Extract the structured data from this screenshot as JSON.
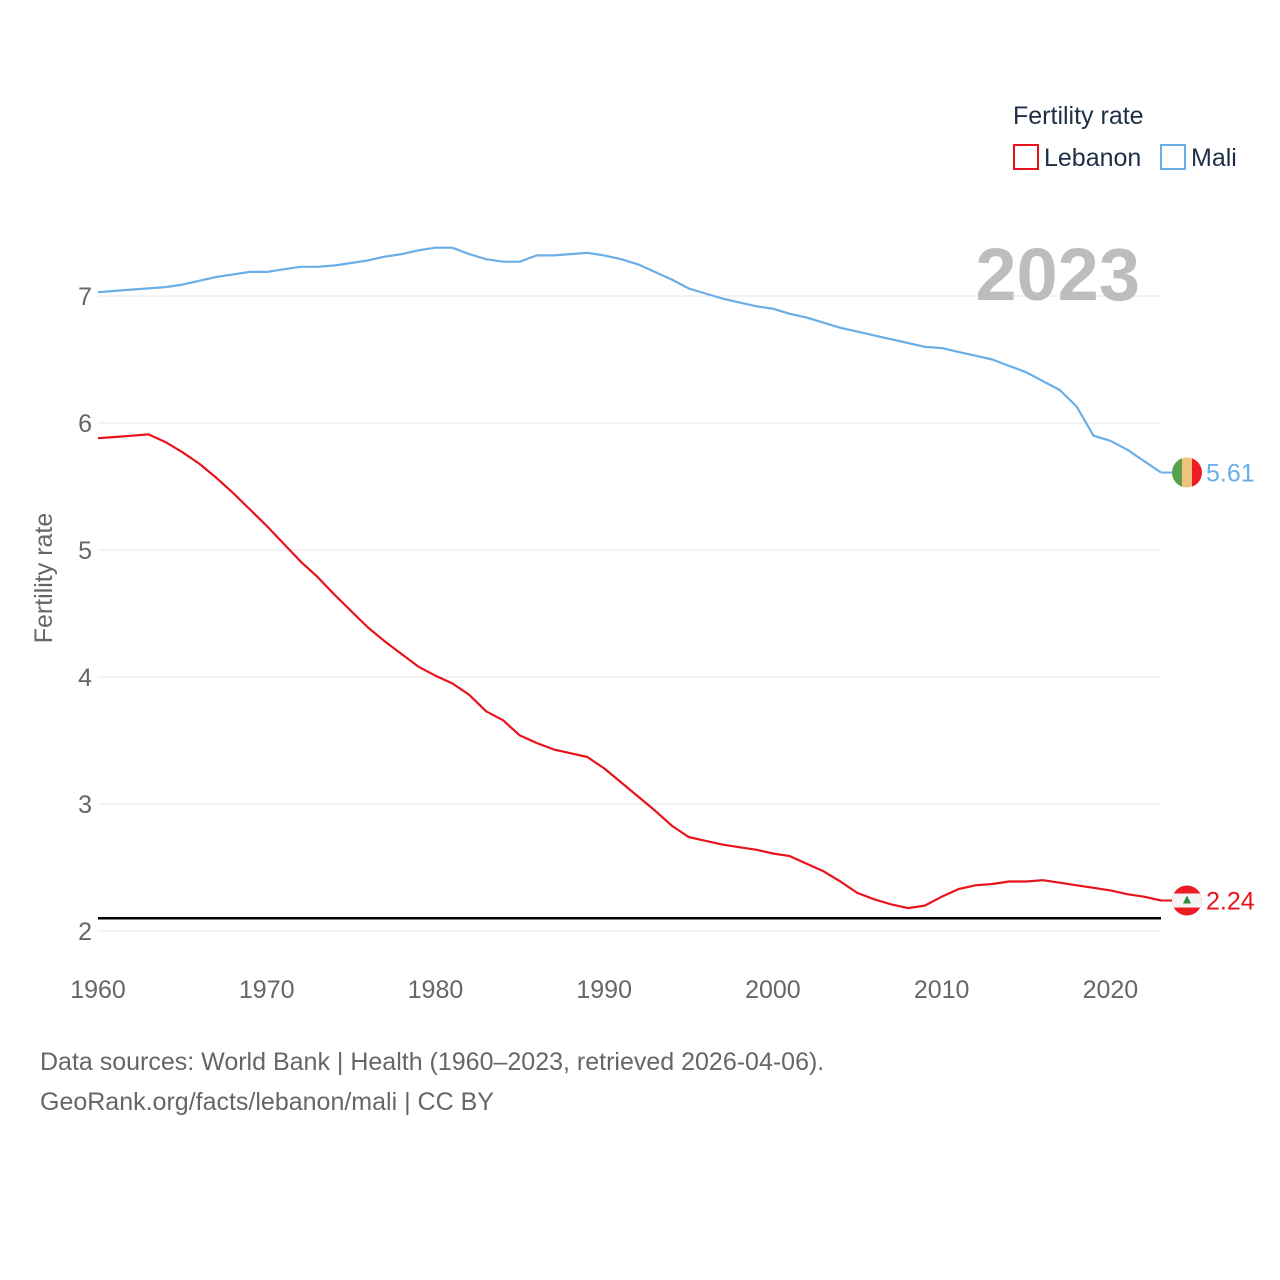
{
  "chart_data": {
    "type": "line",
    "legend_title": "Fertility rate",
    "legend_position": "top-right",
    "year_label": "2023",
    "ylabel": "Fertility rate",
    "xlabel": "",
    "xlim": [
      1960,
      2023
    ],
    "ylim": [
      2,
      7.5
    ],
    "x_ticks": [
      1960,
      1970,
      1980,
      1990,
      2000,
      2010,
      2020
    ],
    "y_ticks": [
      2,
      3,
      4,
      5,
      6,
      7
    ],
    "reference_line": {
      "value": 2.1
    },
    "x": [
      1960,
      1961,
      1962,
      1963,
      1964,
      1965,
      1966,
      1967,
      1968,
      1969,
      1970,
      1971,
      1972,
      1973,
      1974,
      1975,
      1976,
      1977,
      1978,
      1979,
      1980,
      1981,
      1982,
      1983,
      1984,
      1985,
      1986,
      1987,
      1988,
      1989,
      1990,
      1991,
      1992,
      1993,
      1994,
      1995,
      1996,
      1997,
      1998,
      1999,
      2000,
      2001,
      2002,
      2003,
      2004,
      2005,
      2006,
      2007,
      2008,
      2009,
      2010,
      2011,
      2012,
      2013,
      2014,
      2015,
      2016,
      2017,
      2018,
      2019,
      2020,
      2021,
      2022,
      2023
    ],
    "series": [
      {
        "name": "Lebanon",
        "color": "#e8131a",
        "end_label": "2.24",
        "flag": "lebanon-flag-icon",
        "values": [
          5.88,
          5.89,
          5.9,
          5.91,
          5.85,
          5.77,
          5.68,
          5.57,
          5.45,
          5.32,
          5.19,
          5.05,
          4.91,
          4.79,
          4.65,
          4.52,
          4.39,
          4.28,
          4.18,
          4.08,
          4.01,
          3.95,
          3.86,
          3.73,
          3.66,
          3.54,
          3.48,
          3.43,
          3.4,
          3.37,
          3.28,
          3.17,
          3.06,
          2.95,
          2.83,
          2.74,
          2.71,
          2.68,
          2.66,
          2.64,
          2.61,
          2.59,
          2.53,
          2.47,
          2.39,
          2.3,
          2.25,
          2.21,
          2.18,
          2.2,
          2.27,
          2.33,
          2.36,
          2.37,
          2.39,
          2.39,
          2.4,
          2.38,
          2.36,
          2.34,
          2.32,
          2.29,
          2.27,
          2.24
        ]
      },
      {
        "name": "Mali",
        "color": "#6aaee8",
        "end_label": "5.61",
        "flag": "mali-flag-icon",
        "values": [
          7.03,
          7.04,
          7.05,
          7.06,
          7.07,
          7.09,
          7.12,
          7.15,
          7.17,
          7.19,
          7.19,
          7.21,
          7.23,
          7.23,
          7.24,
          7.26,
          7.28,
          7.31,
          7.33,
          7.36,
          7.38,
          7.38,
          7.33,
          7.29,
          7.27,
          7.27,
          7.32,
          7.32,
          7.33,
          7.34,
          7.32,
          7.29,
          7.25,
          7.19,
          7.13,
          7.06,
          7.02,
          6.98,
          6.95,
          6.92,
          6.9,
          6.86,
          6.83,
          6.79,
          6.75,
          6.72,
          6.69,
          6.66,
          6.63,
          6.6,
          6.59,
          6.56,
          6.53,
          6.5,
          6.45,
          6.4,
          6.33,
          6.26,
          6.13,
          5.9,
          5.86,
          5.79,
          5.7,
          5.61
        ]
      }
    ]
  },
  "footer": {
    "sources": "Data sources: World Bank | Health (1960–2023, retrieved 2026-04-06).",
    "credit": "GeoRank.org/facts/lebanon/mali | CC BY"
  }
}
